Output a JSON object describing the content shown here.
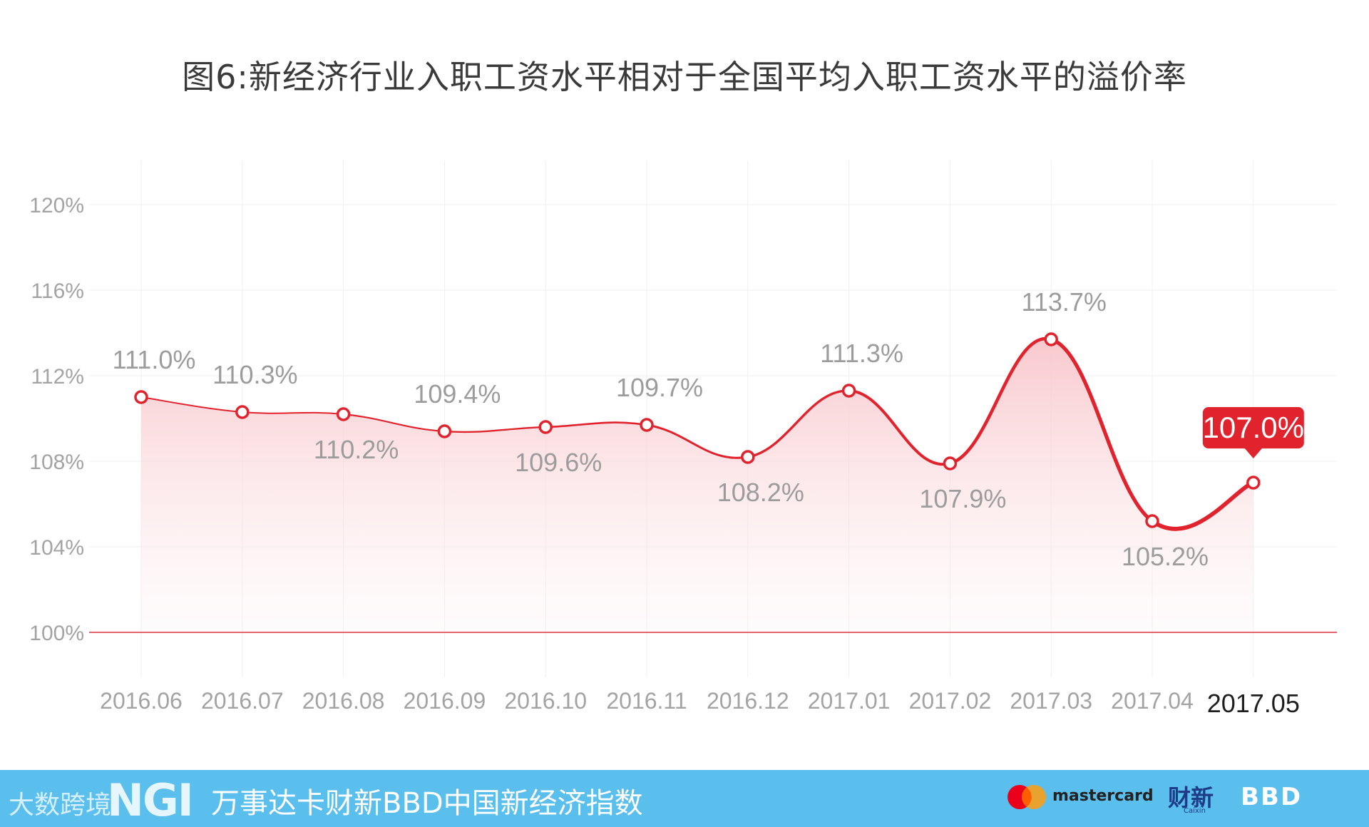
{
  "title": "图6:新经济行业入职工资水平相对于全国平均入职工资水平的溢价率",
  "chart_data": {
    "type": "line",
    "title": "图6:新经济行业入职工资水平相对于全国平均入职工资水平的溢价率",
    "categories": [
      "2016.06",
      "2016.07",
      "2016.08",
      "2016.09",
      "2016.10",
      "2016.11",
      "2016.12",
      "2017.01",
      "2017.02",
      "2017.03",
      "2017.04",
      "2017.05"
    ],
    "series": [
      {
        "values": [
          111.0,
          110.3,
          110.2,
          109.4,
          109.6,
          109.7,
          108.2,
          111.3,
          107.9,
          113.7,
          105.2,
          107.0
        ]
      }
    ],
    "data_labels": [
      "111.0%",
      "110.3%",
      "110.2%",
      "109.4%",
      "109.6%",
      "109.7%",
      "108.2%",
      "111.3%",
      "107.9%",
      "113.7%",
      "105.2%",
      "107.0%"
    ],
    "label_positions": [
      "above",
      "above",
      "below",
      "above",
      "below",
      "above",
      "below",
      "above",
      "below",
      "above",
      "below",
      "callout"
    ],
    "y_ticks": [
      100,
      104,
      108,
      112,
      116,
      120
    ],
    "y_tick_labels": [
      "100%",
      "104%",
      "108%",
      "112%",
      "116%",
      "120%"
    ],
    "ylim": [
      100,
      120
    ],
    "y_unit": "%",
    "grid": true,
    "highlight_last": true,
    "colors": {
      "line": "#e0232d",
      "fill": "#fbd4d7",
      "baseline": "#d9333b",
      "grid": "#efefef",
      "callout": "#e0232d"
    }
  },
  "footer": {
    "background": "#5bbfee",
    "watermark": "大数跨境",
    "logo": "NGI",
    "index_name": "万事达卡财新BBD中国新经济指数",
    "sponsor_1": "mastercard",
    "sponsor_2": "财新",
    "sponsor_2_sub": "Caixin",
    "sponsor_3": "BBD"
  }
}
